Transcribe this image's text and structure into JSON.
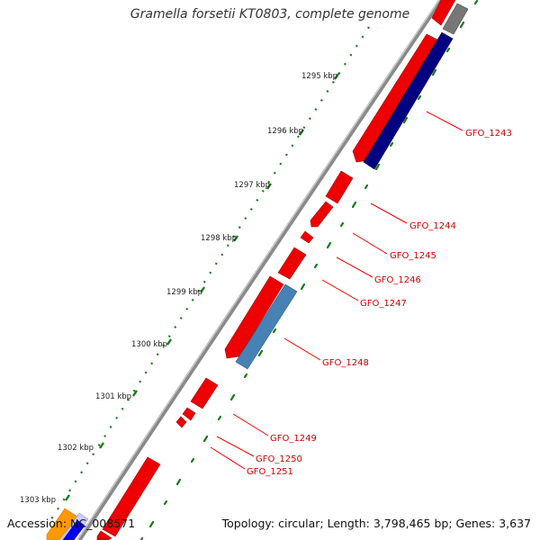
{
  "title": "Gramella forsetii KT0803, complete genome",
  "footer": {
    "accession": "Accession: NC_008571",
    "topology": "Topology: circular; Length: 3,798,465 bp; Genes: 3,637"
  },
  "ruler_labels": [
    "1295 kbp",
    "1296 kbp",
    "1297 kbp",
    "1298 kbp",
    "1299 kbp",
    "1300 kbp",
    "1301 kbp",
    "1302 kbp",
    "1303 kbp"
  ],
  "gene_labels": [
    "GFO_1243",
    "GFO_1244",
    "GFO_1245",
    "GFO_1246",
    "GFO_1247",
    "GFO_1248",
    "GFO_1249",
    "GFO_1250",
    "GFO_1251"
  ],
  "colors": {
    "backbone": "#8a8a8a",
    "forward_gene": "#ee0000",
    "reverse_gene_dark": "#000080",
    "reverse_gene_light": "#4682b4",
    "grey_gene": "#777777",
    "tick": "#1a7a1a",
    "label": "#cc0000"
  }
}
